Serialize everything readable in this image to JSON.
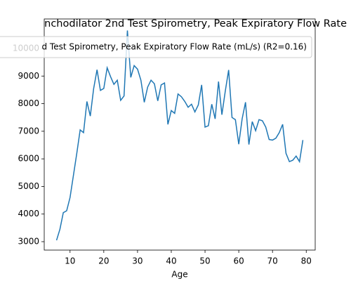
{
  "chart_data": {
    "type": "line",
    "title": "nchodilator 2nd Test Spirometry, Peak Expiratory Flow Rate",
    "xlabel": "Age",
    "x": [
      6,
      7,
      8,
      9,
      10,
      11,
      12,
      13,
      14,
      15,
      16,
      17,
      18,
      19,
      20,
      21,
      22,
      23,
      24,
      25,
      26,
      27,
      28,
      29,
      30,
      31,
      32,
      33,
      34,
      35,
      36,
      37,
      38,
      39,
      40,
      41,
      42,
      43,
      44,
      45,
      46,
      47,
      48,
      49,
      50,
      51,
      52,
      53,
      54,
      55,
      56,
      57,
      58,
      59,
      60,
      61,
      62,
      63,
      64,
      65,
      66,
      67,
      68,
      69,
      70,
      71,
      72,
      73,
      74,
      75,
      76,
      77,
      78,
      79
    ],
    "series": [
      {
        "name": "d Test Spirometry, Peak Expiratory Flow Rate (mL/s) (R2=0.16)",
        "color": "#1f77b4",
        "values": [
          3050,
          3450,
          4050,
          4120,
          4600,
          5400,
          6200,
          7050,
          6950,
          8080,
          7550,
          8550,
          9230,
          8480,
          8550,
          9300,
          8980,
          8700,
          8850,
          8120,
          8280,
          10650,
          8950,
          9380,
          9250,
          8850,
          8050,
          8600,
          8850,
          8720,
          8100,
          8680,
          8750,
          7250,
          7750,
          7650,
          8350,
          8250,
          8080,
          7870,
          7980,
          7700,
          7950,
          8680,
          7150,
          7200,
          7980,
          7450,
          8800,
          7600,
          8450,
          9220,
          7500,
          7420,
          6530,
          7450,
          8050,
          6520,
          7350,
          7020,
          7420,
          7380,
          7150,
          6700,
          6680,
          6750,
          6950,
          7250,
          6200,
          5900,
          5950,
          6100,
          5900,
          6680
        ]
      }
    ],
    "xlim": [
      2.35,
      82.65
    ],
    "xticks": [
      10,
      20,
      30,
      40,
      50,
      60,
      70,
      80
    ],
    "ylim": [
      2695,
      11068
    ],
    "yticks": [
      3000,
      4000,
      5000,
      6000,
      7000,
      8000,
      9000,
      10000
    ],
    "legend": "upper center"
  }
}
